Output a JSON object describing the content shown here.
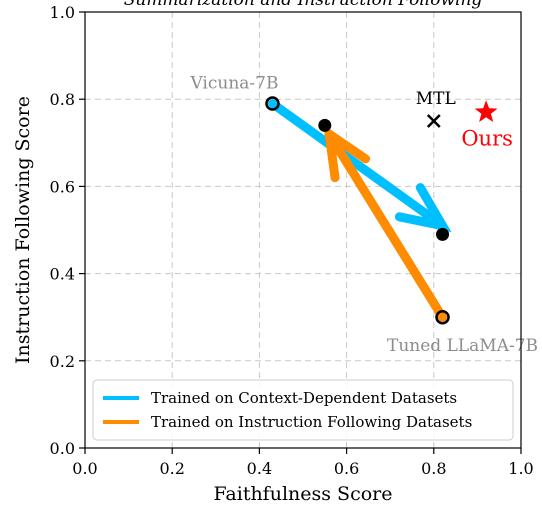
{
  "chart_data": {
    "type": "scatter",
    "title": "Summarization and Instruction Following",
    "xlabel": "Faithfulness Score",
    "ylabel": "Instruction Following Score",
    "xlim": [
      0.0,
      1.0
    ],
    "ylim": [
      0.0,
      1.0
    ],
    "xticks": [
      "0.0",
      "0.2",
      "0.4",
      "0.6",
      "0.8",
      "1.0"
    ],
    "yticks": [
      "0.0",
      "0.2",
      "0.4",
      "0.6",
      "0.8",
      "1.0"
    ],
    "grid": true,
    "legend_position": "lower-left",
    "points": [
      {
        "id": "vicuna",
        "x": 0.43,
        "y": 0.79,
        "marker": "circle-hollow",
        "label": "Vicuna-7B",
        "label_color": "#8c8c8c"
      },
      {
        "id": "vicuna_ctx",
        "x": 0.82,
        "y": 0.49,
        "marker": "circle",
        "label": ""
      },
      {
        "id": "llama",
        "x": 0.82,
        "y": 0.3,
        "marker": "circle-hollow",
        "label": "Tuned LLaMA-7B",
        "label_color": "#8c8c8c"
      },
      {
        "id": "llama_inst",
        "x": 0.55,
        "y": 0.74,
        "marker": "circle",
        "label": ""
      },
      {
        "id": "mtl",
        "x": 0.8,
        "y": 0.75,
        "marker": "x",
        "label": "MTL",
        "label_color": "#000000"
      },
      {
        "id": "ours",
        "x": 0.92,
        "y": 0.77,
        "marker": "star",
        "label": "Ours",
        "label_color": "#ff0000"
      }
    ],
    "arrows": [
      {
        "series": 0,
        "from": [
          0.43,
          0.79
        ],
        "to": [
          0.82,
          0.51
        ]
      },
      {
        "series": 1,
        "from": [
          0.82,
          0.3
        ],
        "to": [
          0.56,
          0.72
        ]
      }
    ],
    "series": [
      {
        "name": "Trained on Context-Dependent Datasets",
        "color": "#00bfff"
      },
      {
        "name": "Trained on Instruction Following Datasets",
        "color": "#ff8c00"
      }
    ]
  }
}
